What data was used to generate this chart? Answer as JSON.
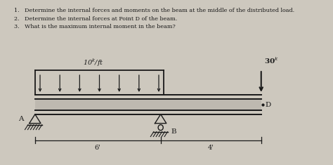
{
  "bg_color": "#cdc8be",
  "text_color": "#1a1a1a",
  "q1": "1.   Determine the internal forces and moments on the beam at the middle of the distributed load.",
  "q2": "2.   Determine the internal forces at Point D of the beam.",
  "q3": "3.   What is the maximum internal moment in the beam?",
  "dist_load_label": "10$^k$/ft",
  "point_load_label": "30$^k$",
  "label_A": "A",
  "label_B": "B",
  "label_D": "D",
  "dim_6": "6'",
  "dim_4": "4'"
}
